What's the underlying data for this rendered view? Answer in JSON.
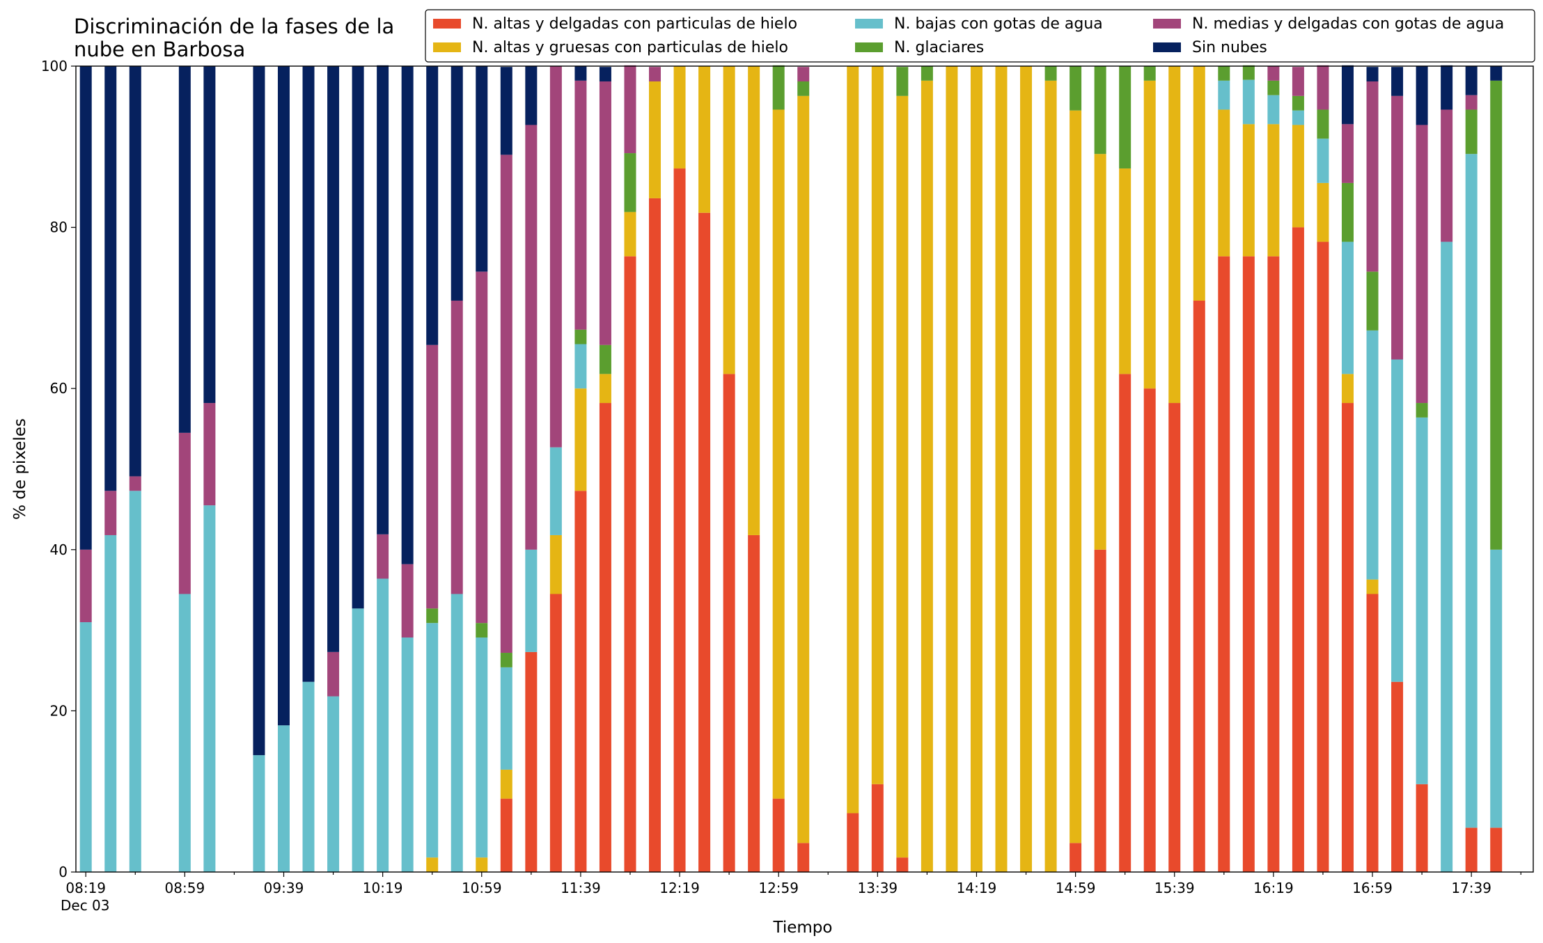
{
  "chart_data": {
    "type": "stacked_bar",
    "title": "Discriminación de la fases de la\nnube en Barbosa",
    "x_label": "Tiempo",
    "y_label": "% de pixeles",
    "x_date_label": "Dec 03",
    "categories": [
      "08:19",
      null,
      null,
      null,
      "08:59",
      null,
      null,
      null,
      "09:39",
      null,
      null,
      null,
      "10:19",
      null,
      null,
      null,
      "10:59",
      null,
      null,
      null,
      "11:39",
      null,
      null,
      null,
      "12:19",
      null,
      null,
      null,
      "12:59",
      null,
      null,
      null,
      "13:39",
      null,
      null,
      null,
      "14:19",
      null,
      null,
      null,
      "14:59",
      null,
      null,
      null,
      "15:39",
      null,
      null,
      null,
      "16:19",
      null,
      null,
      null,
      "16:59",
      null,
      null,
      null,
      "17:39",
      null
    ],
    "ylim": [
      0,
      100
    ],
    "yticks": [
      0,
      20,
      40,
      60,
      80,
      100
    ],
    "series": [
      {
        "name": "N. altas y delgadas con particulas de hielo",
        "color": "#e84a2c",
        "values": [
          0,
          0,
          0,
          null,
          0,
          0,
          null,
          0,
          0,
          0,
          0,
          0,
          0,
          0,
          0,
          0,
          0,
          9.1,
          27.3,
          34.5,
          47.3,
          58.2,
          76.4,
          83.6,
          87.3,
          81.8,
          61.8,
          41.8,
          9.1,
          3.6,
          null,
          7.3,
          10.9,
          1.8,
          0,
          0,
          0,
          0,
          0,
          0,
          3.6,
          40,
          61.8,
          60,
          58.2,
          70.9,
          76.4,
          76.4,
          76.4,
          80,
          78.2,
          58.2,
          34.5,
          23.6,
          10.9,
          0,
          5.5,
          5.5
        ]
      },
      {
        "name": "N. altas y gruesas con particulas de hielo",
        "color": "#e5b514",
        "values": [
          0,
          0,
          0,
          null,
          0,
          0,
          null,
          0,
          0,
          0,
          0,
          0,
          0,
          0,
          1.8,
          0,
          1.8,
          3.6,
          0,
          7.3,
          12.7,
          3.6,
          5.5,
          14.5,
          12.7,
          18.2,
          38.2,
          58.2,
          85.5,
          92.7,
          null,
          92.7,
          89.1,
          94.5,
          98.2,
          100,
          100,
          100,
          100,
          98.2,
          90.9,
          49.1,
          25.5,
          38.2,
          41.8,
          29.1,
          18.2,
          16.4,
          16.4,
          12.7,
          7.3,
          3.6,
          1.8,
          0,
          0,
          0,
          0,
          0
        ]
      },
      {
        "name": "N. bajas con gotas de agua",
        "color": "#66bfcb",
        "values": [
          31,
          41.8,
          47.3,
          null,
          34.5,
          45.5,
          null,
          14.5,
          18.2,
          23.6,
          21.8,
          32.7,
          36.4,
          29.1,
          29.1,
          34.5,
          27.3,
          12.7,
          12.7,
          10.9,
          5.5,
          0,
          0,
          0,
          0,
          0,
          0,
          0,
          0,
          0,
          null,
          0,
          0,
          0,
          0,
          0,
          0,
          0,
          0,
          0,
          0,
          0,
          0,
          0,
          0,
          0,
          3.6,
          5.5,
          3.6,
          1.8,
          5.5,
          16.4,
          30.9,
          40,
          45.5,
          78.2,
          83.6,
          34.5
        ]
      },
      {
        "name": "N. glaciares",
        "color": "#5b9e2f",
        "values": [
          0,
          0,
          0,
          null,
          0,
          0,
          null,
          0,
          0,
          0,
          0,
          0,
          0,
          0,
          1.8,
          0,
          1.8,
          1.8,
          0,
          0,
          1.8,
          3.6,
          7.3,
          0,
          0,
          0,
          0,
          0,
          5.5,
          1.8,
          null,
          0,
          0,
          3.6,
          1.8,
          0,
          0,
          0,
          0,
          1.8,
          5.5,
          10.9,
          12.7,
          1.8,
          0,
          0,
          1.8,
          1.8,
          1.8,
          1.8,
          3.6,
          7.3,
          7.3,
          0,
          1.8,
          0,
          5.5,
          58.2
        ]
      },
      {
        "name": "N. medias y delgadas con gotas de agua",
        "color": "#a2457a",
        "values": [
          9,
          5.5,
          1.8,
          null,
          20,
          12.7,
          null,
          0,
          0,
          0,
          5.5,
          0,
          5.5,
          9.1,
          32.7,
          36.4,
          43.6,
          61.8,
          52.7,
          47.3,
          30.9,
          32.7,
          10.9,
          1.8,
          0,
          0,
          0,
          0,
          0,
          1.8,
          null,
          0,
          0,
          0,
          0,
          0,
          0,
          0,
          0,
          0,
          0,
          0,
          0,
          0,
          0,
          0,
          0,
          0,
          1.8,
          3.6,
          5.5,
          7.3,
          23.6,
          32.7,
          34.5,
          16.4,
          1.8,
          0
        ]
      },
      {
        "name": "Sin nubes",
        "color": "#06215e",
        "values": [
          60,
          52.7,
          50.9,
          null,
          45.5,
          41.8,
          null,
          85.5,
          81.8,
          76.4,
          72.7,
          67.3,
          58.2,
          61.8,
          34.6,
          29.1,
          25.5,
          10.9,
          7.3,
          0,
          1.8,
          1.8,
          0,
          0,
          0,
          0,
          0,
          0,
          0,
          0,
          null,
          0,
          0,
          0,
          0,
          0,
          0,
          0,
          0,
          0,
          0,
          0,
          0,
          0,
          0,
          0,
          0,
          0,
          0,
          0,
          0,
          7.3,
          1.8,
          3.6,
          7.3,
          5.5,
          3.6,
          1.8
        ]
      }
    ]
  }
}
